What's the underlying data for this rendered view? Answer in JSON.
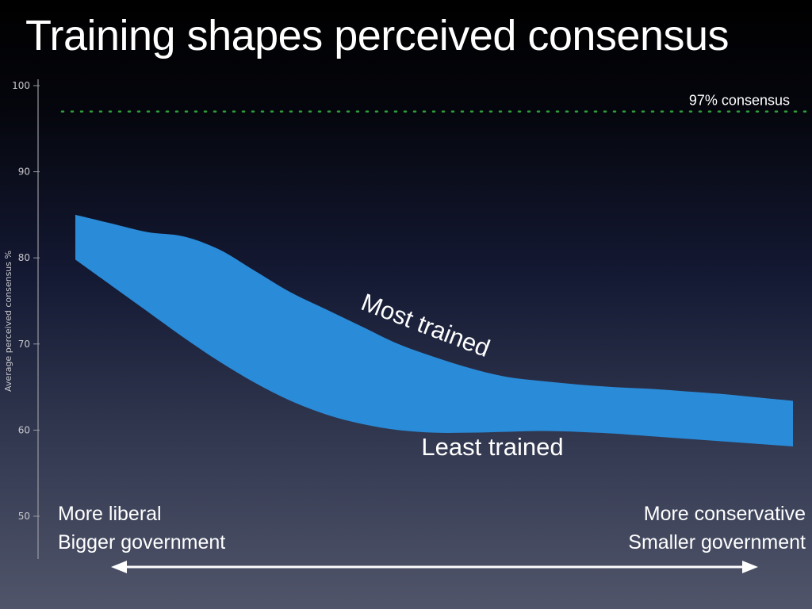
{
  "title": "Training shapes perceived consensus",
  "chart_data": {
    "type": "area",
    "title": "Training shapes perceived consensus",
    "ylabel": "Average perceived consensus %",
    "xlabel": "",
    "ylim": [
      50,
      100
    ],
    "yticks": [
      50,
      60,
      70,
      80,
      90,
      100
    ],
    "xlim": [
      0,
      1
    ],
    "x": [
      0,
      0.05,
      0.1,
      0.15,
      0.2,
      0.25,
      0.3,
      0.35,
      0.4,
      0.45,
      0.5,
      0.55,
      0.6,
      0.65,
      0.7,
      0.75,
      0.8,
      0.85,
      0.9,
      0.95,
      1
    ],
    "series": [
      {
        "name": "Most trained",
        "values": [
          85.0,
          84.0,
          83.0,
          82.5,
          81.0,
          78.5,
          76.0,
          74.0,
          72.0,
          70.0,
          68.5,
          67.2,
          66.2,
          65.7,
          65.3,
          65.0,
          64.8,
          64.5,
          64.2,
          63.8,
          63.4
        ]
      },
      {
        "name": "Least trained",
        "values": [
          79.8,
          76.8,
          73.8,
          70.8,
          68.0,
          65.5,
          63.4,
          61.8,
          60.7,
          60.0,
          59.7,
          59.7,
          59.8,
          59.9,
          59.8,
          59.6,
          59.3,
          59.0,
          58.7,
          58.4,
          58.1
        ]
      }
    ],
    "reference_line": {
      "label": "97% consensus",
      "value": 97
    },
    "annotations": {
      "upper": "Most trained",
      "lower": "Least trained"
    },
    "band_color": "#2a8bd8",
    "reference_color": "#2e9e3a",
    "grid": false
  },
  "x_axis_labels": {
    "left": [
      "More liberal",
      "Bigger government"
    ],
    "right": [
      "More conservative",
      "Smaller government"
    ]
  }
}
